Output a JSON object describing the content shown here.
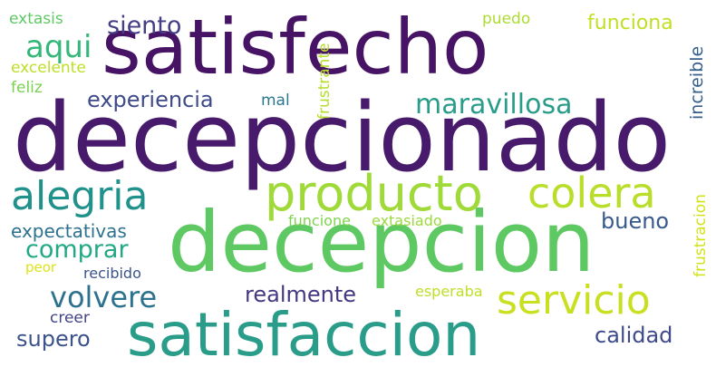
{
  "words": [
    {
      "text": "satisfecho",
      "color": "#471465"
    },
    {
      "text": "decepcionado",
      "color": "#481a6c"
    },
    {
      "text": "decepcion",
      "color": "#5ec962"
    },
    {
      "text": "satisfaccion",
      "color": "#2a9d8a"
    },
    {
      "text": "producto",
      "color": "#a0da39"
    },
    {
      "text": "alegria",
      "color": "#21918c"
    },
    {
      "text": "colera",
      "color": "#b8de29"
    },
    {
      "text": "servicio",
      "color": "#c8e020"
    },
    {
      "text": "aqui",
      "color": "#35b779"
    },
    {
      "text": "siento",
      "color": "#433e85"
    },
    {
      "text": "extasis",
      "color": "#5ec962"
    },
    {
      "text": "excelente",
      "color": "#bddf26"
    },
    {
      "text": "feliz",
      "color": "#7ad151"
    },
    {
      "text": "experiencia",
      "color": "#3e4a89"
    },
    {
      "text": "mal",
      "color": "#2a788e"
    },
    {
      "text": "maravillosa",
      "color": "#2a9d8a"
    },
    {
      "text": "puedo",
      "color": "#addc30"
    },
    {
      "text": "funciona",
      "color": "#c2df23"
    },
    {
      "text": "frustrante",
      "color": "#b5de2b"
    },
    {
      "text": "increible",
      "color": "#355f8d"
    },
    {
      "text": "frustracion",
      "color": "#d2e21b"
    },
    {
      "text": "expectativas",
      "color": "#2c728e"
    },
    {
      "text": "comprar",
      "color": "#22a884"
    },
    {
      "text": "funcione",
      "color": "#7fd34e"
    },
    {
      "text": "extasiado",
      "color": "#9bd93c"
    },
    {
      "text": "bueno",
      "color": "#38598c"
    },
    {
      "text": "peor",
      "color": "#dde318"
    },
    {
      "text": "recibido",
      "color": "#3b528b"
    },
    {
      "text": "volvere",
      "color": "#2c728e"
    },
    {
      "text": "realmente",
      "color": "#453781"
    },
    {
      "text": "esperaba",
      "color": "#bddf26"
    },
    {
      "text": "creer",
      "color": "#414487"
    },
    {
      "text": "supero",
      "color": "#3b528b"
    },
    {
      "text": "calidad",
      "color": "#3e4a89"
    }
  ]
}
